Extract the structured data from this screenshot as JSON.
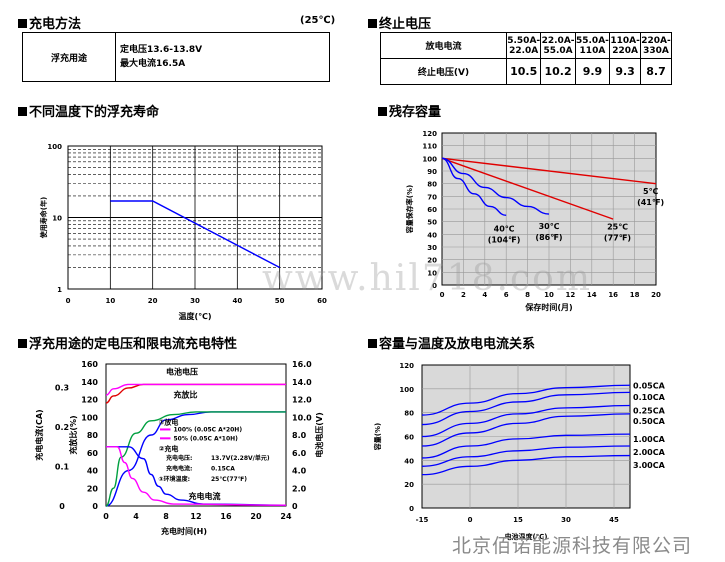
{
  "charge_method": {
    "title": "充电方法",
    "temp": "(25℃)",
    "label": "浮充用途",
    "line1": "定电压13.6-13.8V",
    "line2": "最大电流16.5A"
  },
  "cutoff": {
    "title": "终止电压",
    "row1_label": "放电电流",
    "row2_label": "终止电压(V)",
    "cols": [
      {
        "top": "5.50A-",
        "bottom": "22.0A",
        "value": "10.5"
      },
      {
        "top": "22.0A-",
        "bottom": "55.0A",
        "value": "10.2"
      },
      {
        "top": "55.0A-",
        "bottom": "110A",
        "value": "9.9"
      },
      {
        "top": "110A-",
        "bottom": "220A",
        "value": "9.3"
      },
      {
        "top": "220A-",
        "bottom": "330A",
        "value": "8.7"
      }
    ]
  },
  "watermark": "www.hil718.com",
  "footer": "北京佰诺能源科技有限公司",
  "colors": {
    "blue": "#0000ff",
    "red": "#e00000",
    "magenta": "#ff00ff",
    "green": "#00a040",
    "grid_bg": "#d9d9d9"
  },
  "chart_data": [
    {
      "id": "float_life",
      "type": "line",
      "title": "不同温度下的浮充寿命",
      "xlabel": "温度(℃)",
      "ylabel": "使用寿命(年)",
      "xlim": [
        0,
        60
      ],
      "xticks": [
        "0",
        "10",
        "20",
        "30",
        "40",
        "50",
        "60"
      ],
      "ylog": true,
      "ylim": [
        1,
        100
      ],
      "yticks": [
        "1",
        "10",
        "100"
      ],
      "series": [
        {
          "x": [
            10,
            20,
            50
          ],
          "y": [
            17,
            17,
            2
          ]
        }
      ]
    },
    {
      "id": "residual_capacity",
      "type": "line",
      "title": "残存容量",
      "xlabel": "保存时间(月)",
      "ylabel": "容量保存率(%)",
      "xlim": [
        0,
        20
      ],
      "xticks": [
        "0",
        "2",
        "4",
        "6",
        "8",
        "10",
        "12",
        "14",
        "16",
        "18",
        "20"
      ],
      "ylim": [
        0,
        120
      ],
      "yticks": [
        "0",
        "10",
        "20",
        "30",
        "40",
        "50",
        "60",
        "70",
        "80",
        "90",
        "100",
        "110",
        "120"
      ],
      "series": [
        {
          "name": "5℃",
          "name2": "(41℉)",
          "color": "red",
          "x": [
            0,
            20
          ],
          "y": [
            100,
            80
          ]
        },
        {
          "name": "25℃",
          "name2": "(77℉)",
          "color": "red",
          "x": [
            0,
            16
          ],
          "y": [
            100,
            52
          ]
        },
        {
          "name": "30℃",
          "name2": "(86℉)",
          "color": "blue",
          "x": [
            0,
            2,
            4,
            6,
            8,
            10
          ],
          "y": [
            100,
            88,
            77,
            69,
            62,
            56
          ]
        },
        {
          "name": "40℃",
          "name2": "(104℉)",
          "color": "blue",
          "x": [
            0,
            1.5,
            3,
            4.5,
            6
          ],
          "y": [
            100,
            84,
            72,
            62,
            55
          ]
        }
      ]
    },
    {
      "id": "float_charge",
      "type": "line",
      "title": "浮充用途的定电压和限电流充电特性",
      "xlabel": "充电时间(H)",
      "xlim": [
        0,
        24
      ],
      "xticks": [
        "0",
        "4",
        "8",
        "12",
        "16",
        "20",
        "24"
      ],
      "axis_labels": {
        "current": "充电电流(CA)",
        "ratio": "充放比(%)",
        "voltage": "电池电压(V)"
      },
      "current_ticks": [
        "0",
        "0.1",
        "0.2",
        "0.3"
      ],
      "ratio_ticks": [
        "0",
        "20",
        "40",
        "60",
        "80",
        "100",
        "120",
        "140",
        "160"
      ],
      "voltage_ticks": [
        "0",
        "2.0",
        "4.0",
        "6.0",
        "8.0",
        "10.0",
        "12.0",
        "14.0",
        "16.0"
      ],
      "ylim_ratio": [
        0,
        160
      ],
      "labels": {
        "voltage": "电池电压",
        "ratio": "充放比",
        "current": "充电电流",
        "discharge": "①放电",
        "d1": "100% (0.05C A*20H)",
        "d2": "50% (0.05C A*10H)",
        "charge": "②充电",
        "cv": "充电电压:",
        "cv_val": "13.7V(2.28V/单元)",
        "cc": "充电电流:",
        "cc_val": "0.15CA",
        "amb": "③环境温度:",
        "amb_val": "25℃(77℉)"
      },
      "series": [
        {
          "name": "voltage_100",
          "color": "red",
          "unit": "V",
          "x": [
            0,
            1,
            3,
            5,
            24
          ],
          "y": [
            11.6,
            12.4,
            13.3,
            13.7,
            13.7
          ]
        },
        {
          "name": "voltage_50",
          "color": "magenta",
          "unit": "V",
          "x": [
            0,
            1,
            3,
            24
          ],
          "y": [
            12.5,
            13.2,
            13.7,
            13.7
          ]
        },
        {
          "name": "ratio_100",
          "color": "blue",
          "unit": "%",
          "x": [
            0,
            3,
            6,
            8,
            11,
            14,
            24
          ],
          "y": [
            0,
            40,
            80,
            97,
            103,
            106,
            106
          ]
        },
        {
          "name": "ratio_50",
          "color": "green",
          "unit": "%",
          "x": [
            0,
            1,
            2,
            4,
            6,
            9,
            12,
            24
          ],
          "y": [
            0,
            20,
            55,
            82,
            96,
            103,
            106,
            106
          ]
        },
        {
          "name": "current_100",
          "color": "blue",
          "unit": "CA",
          "x": [
            0,
            3,
            5,
            6,
            7,
            8,
            10,
            13,
            24
          ],
          "y": [
            0.15,
            0.15,
            0.12,
            0.08,
            0.05,
            0.03,
            0.015,
            0.005,
            0.002
          ]
        },
        {
          "name": "current_50",
          "color": "magenta",
          "unit": "CA",
          "x": [
            0,
            1.5,
            2.5,
            3.5,
            5,
            6.5,
            9,
            24
          ],
          "y": [
            0.15,
            0.15,
            0.11,
            0.07,
            0.035,
            0.015,
            0.005,
            0.002
          ]
        }
      ]
    },
    {
      "id": "capacity_temp",
      "type": "line",
      "title": "容量与温度及放电电流关系",
      "xlabel": "电池温度(℃)",
      "ylabel": "容量(%)",
      "xlim": [
        -15,
        50
      ],
      "xticks": [
        "-15",
        "0",
        "15",
        "30",
        "45"
      ],
      "ylim": [
        0,
        120
      ],
      "yticks": [
        "0",
        "20",
        "40",
        "60",
        "80",
        "100",
        "120"
      ],
      "series": [
        {
          "name": "0.05CA",
          "x": [
            -15,
            0,
            15,
            30,
            50
          ],
          "y": [
            78,
            88,
            96,
            101,
            103
          ]
        },
        {
          "name": "0.10CA",
          "x": [
            -15,
            0,
            15,
            30,
            50
          ],
          "y": [
            70,
            81,
            89,
            95,
            97
          ]
        },
        {
          "name": "0.25CA",
          "x": [
            -15,
            0,
            15,
            30,
            50
          ],
          "y": [
            60,
            71,
            79,
            84,
            86
          ]
        },
        {
          "name": "0.50CA",
          "x": [
            -15,
            0,
            15,
            30,
            50
          ],
          "y": [
            52,
            63,
            71,
            77,
            79
          ]
        },
        {
          "name": "1.00CA",
          "x": [
            -15,
            0,
            15,
            30,
            50
          ],
          "y": [
            42,
            52,
            58,
            61,
            62
          ]
        },
        {
          "name": "2.00CA",
          "x": [
            -15,
            0,
            15,
            30,
            50
          ],
          "y": [
            35,
            43,
            48,
            51,
            52
          ]
        },
        {
          "name": "3.00CA",
          "x": [
            -15,
            0,
            15,
            30,
            50
          ],
          "y": [
            28,
            35,
            40,
            43,
            44
          ]
        }
      ]
    }
  ]
}
